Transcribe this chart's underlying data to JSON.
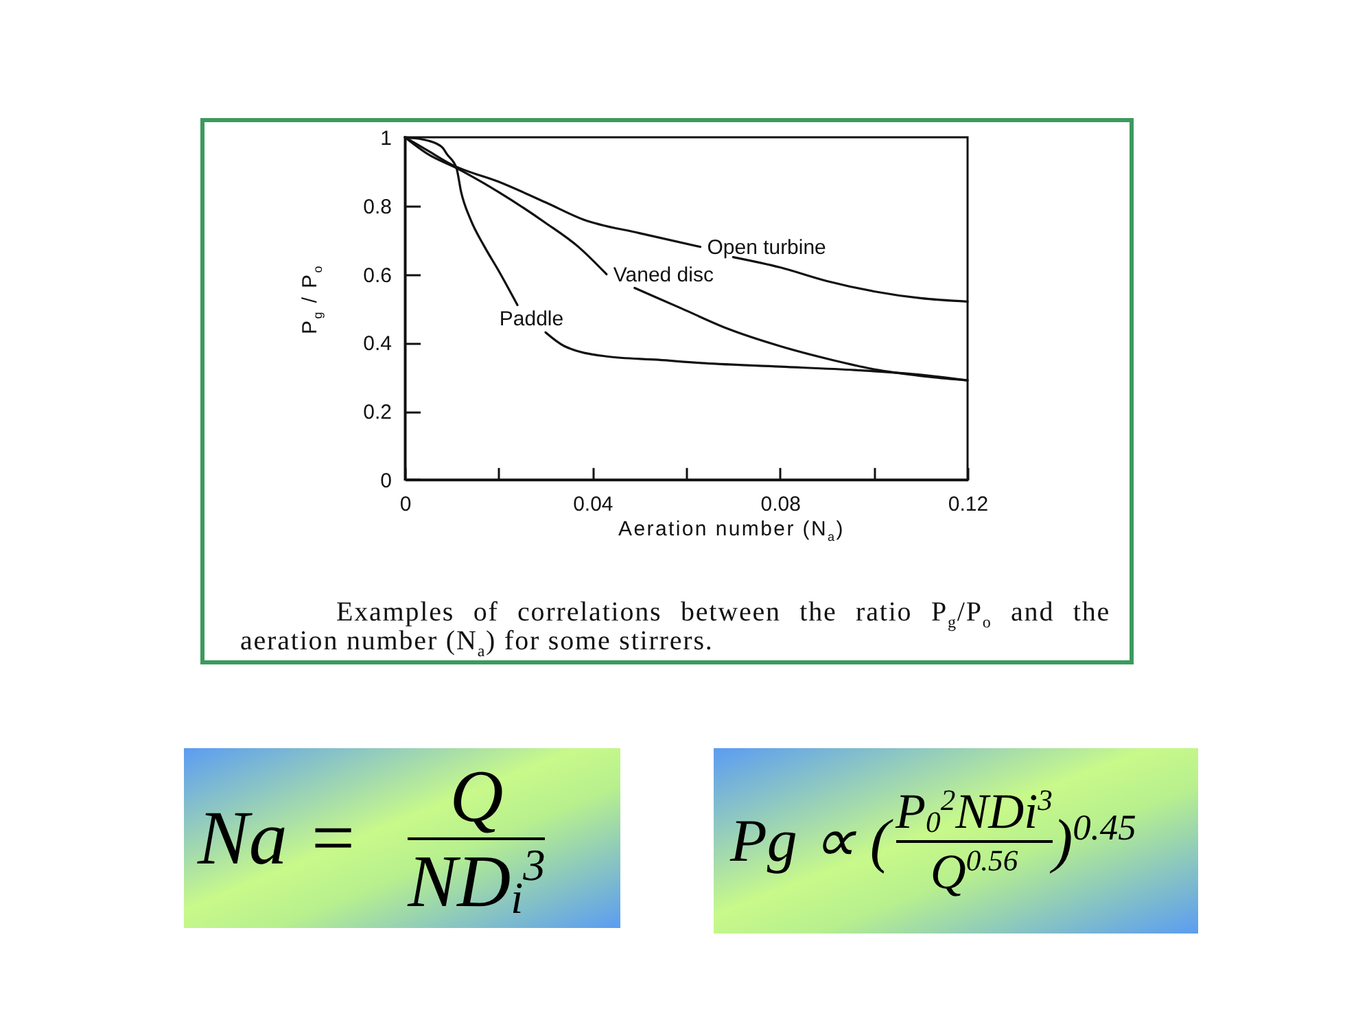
{
  "chart_data": {
    "type": "line",
    "xlabel": "Aeration number (N$_{a}$)",
    "ylabel": "P$_{g}$ / P$_{o}$",
    "xlim": [
      0,
      0.12
    ],
    "ylim": [
      0,
      1
    ],
    "xticks": [
      0,
      {
        "value": 0.02,
        "label": null
      },
      0.04,
      {
        "value": 0.06,
        "label": null
      },
      0.08,
      {
        "value": 0.1,
        "label": null
      },
      0.12
    ],
    "yticks": [
      0,
      0.2,
      0.4,
      0.6,
      0.8,
      1
    ],
    "series": [
      {
        "name": "Open turbine",
        "color": "#111111",
        "x": [
          0,
          0.005,
          0.01,
          0.02,
          0.03,
          0.038,
          0.05,
          0.063,
          0.066,
          0.07,
          0.08,
          0.09,
          0.1,
          0.11,
          0.12
        ],
        "values": [
          1,
          0.96,
          0.92,
          0.87,
          0.81,
          0.76,
          0.72,
          0.68,
          null,
          0.65,
          0.62,
          0.58,
          0.55,
          0.53,
          0.52
        ]
      },
      {
        "name": "Vaned disc",
        "color": "#111111",
        "x": [
          0,
          0.005,
          0.011,
          0.02,
          0.03,
          0.037,
          0.043,
          0.046,
          0.049,
          0.059,
          0.069,
          0.08,
          0.091,
          0.101,
          0.112,
          0.12
        ],
        "values": [
          1,
          0.95,
          0.91,
          0.84,
          0.75,
          0.68,
          0.6,
          null,
          0.56,
          0.5,
          0.44,
          0.39,
          0.35,
          0.32,
          0.3,
          0.29
        ]
      },
      {
        "name": "Paddle",
        "color": "#111111",
        "x": [
          0,
          0.005,
          0.008,
          0.009,
          0.011,
          0.012,
          0.014,
          0.017,
          0.02,
          0.024,
          0.027,
          0.03,
          0.034,
          0.043,
          0.054,
          0.064,
          0.08,
          0.096,
          0.107,
          0.12
        ],
        "values": [
          1,
          0.99,
          0.97,
          0.95,
          0.91,
          0.84,
          0.76,
          0.68,
          0.61,
          0.51,
          null,
          0.43,
          0.39,
          0.36,
          0.35,
          0.34,
          0.33,
          0.32,
          0.31,
          0.29
        ]
      }
    ],
    "annotations": [
      "Examples of correlations between the ratio P$_{g}$/P$_{o}$ and the aeration number (N$_{a}$) for some stirrers.",
      "Na =",
      "Q",
      "ND$_{i}$$^{3}$",
      "Pg ∝ (",
      "P$_{0}$$^{2}$NDi$^{3}$",
      "Q$^{0.56}$",
      ")$^{0.45}$"
    ]
  }
}
